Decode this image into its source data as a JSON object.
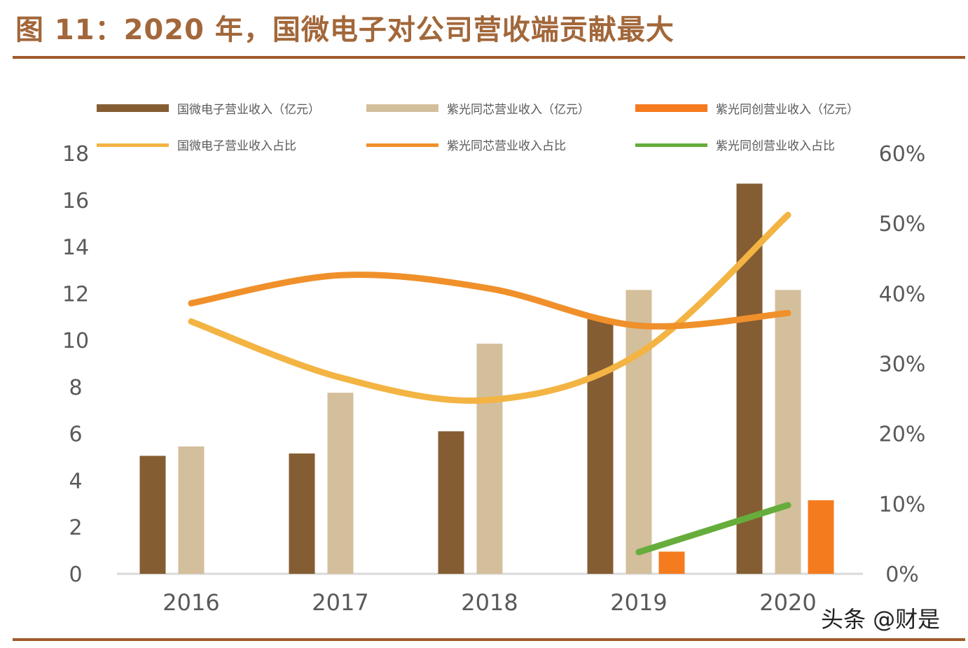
{
  "title": "图 11：2020 年，国微电子对公司营收端贡献最大",
  "watermark": "头条 @财是",
  "chart_data": {
    "type": "bar+line",
    "categories": [
      "2016",
      "2017",
      "2018",
      "2019",
      "2020"
    ],
    "ylim": [
      0,
      18
    ],
    "yticks": [
      "0",
      "2",
      "4",
      "6",
      "8",
      "10",
      "12",
      "14",
      "16",
      "18"
    ],
    "y2lim": [
      0,
      60
    ],
    "y2ticks": [
      "0%",
      "10%",
      "20%",
      "30%",
      "40%",
      "50%",
      "60%"
    ],
    "legend_position": "top",
    "grid": false,
    "bar_series": [
      {
        "name": "国微电子营业收入（亿元）",
        "color": "#855d32",
        "values": [
          5.05,
          5.15,
          6.1,
          10.9,
          16.7
        ]
      },
      {
        "name": "紫光同芯营业收入（亿元）",
        "color": "#d4bf9c",
        "values": [
          5.45,
          7.75,
          9.85,
          12.15,
          12.15
        ]
      },
      {
        "name": "紫光同创营业收入（亿元）",
        "color": "#f57b1f",
        "values": [
          null,
          null,
          null,
          0.95,
          3.15
        ]
      }
    ],
    "line_series": [
      {
        "name": "国微电子营业收入占比",
        "color": "#f3b443",
        "values": [
          36.0,
          28.0,
          24.8,
          31.4,
          51.2
        ]
      },
      {
        "name": "紫光同芯营业收入占比",
        "color": "#f0902a",
        "values": [
          38.6,
          42.6,
          40.7,
          35.4,
          37.2
        ]
      },
      {
        "name": "紫光同创营业收入占比",
        "color": "#66ad3c",
        "values": [
          null,
          null,
          null,
          3.1,
          9.8
        ]
      }
    ]
  }
}
